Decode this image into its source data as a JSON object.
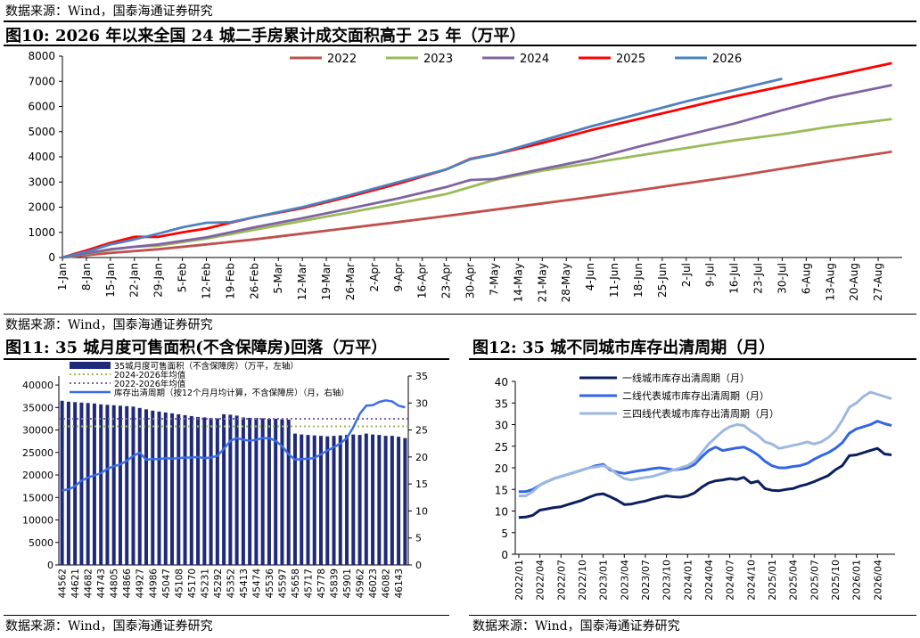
{
  "top_source": "数据来源：Wind，国泰海通证券研究",
  "fig10": {
    "title": "图10:  2026 年以来全国 24 城二手房累计成交面积高于 25 年（万平）",
    "source": "数据来源：Wind，国泰海通证券研究"
  },
  "fig11": {
    "title": "图11:  35 城月度可售面积(不含保障房)回落（万平）",
    "source": "数据来源：Wind，国泰海通证券研究"
  },
  "fig12": {
    "title": "图12:  35 城不同城市库存出清周期（月）",
    "source": "数据来源：Wind，国泰海通证券研究"
  },
  "colors": {
    "s2022": "#C0504D",
    "s2023": "#9BBB59",
    "s2024": "#8064A2",
    "s2025": "#FF0000",
    "s2026": "#4F81BD",
    "bar": "#1F2A7A",
    "avg2426": "#9BBB59",
    "avg2226": "#8064A2",
    "cycle": "#3B6EE6",
    "tier1": "#0B1F5C",
    "tier2": "#3366E6",
    "tier34": "#9DB8DE"
  },
  "chart_data": [
    {
      "type": "line",
      "title": "",
      "ylim": [
        0,
        8000
      ],
      "yticks": [
        0,
        1000,
        2000,
        3000,
        4000,
        5000,
        6000,
        7000,
        8000
      ],
      "x_range_days": [
        0,
        245
      ],
      "xticks": [
        "1-Jan",
        "8-Jan",
        "15-Jan",
        "22-Jan",
        "29-Jan",
        "5-Feb",
        "12-Feb",
        "19-Feb",
        "26-Feb",
        "5-Mar",
        "12-Mar",
        "19-Mar",
        "26-Mar",
        "2-Apr",
        "9-Apr",
        "16-Apr",
        "23-Apr",
        "30-Apr",
        "7-May",
        "14-May",
        "21-May",
        "28-May",
        "4-Jun",
        "11-Jun",
        "18-Jun",
        "25-Jun",
        "2-Jul",
        "9-Jul",
        "16-Jul",
        "23-Jul",
        "30-Jul",
        "6-Aug",
        "13-Aug",
        "20-Aug",
        "27-Aug"
      ],
      "legend_position": "top",
      "series": [
        {
          "name": "2022",
          "x": [
            "1-Jan",
            "15-Jan",
            "29-Jan",
            "12-Feb",
            "26-Feb",
            "12-Mar",
            "26-Mar",
            "9-Apr",
            "23-Apr",
            "7-May",
            "21-May",
            "4-Jun",
            "18-Jun",
            "2-Jul",
            "16-Jul",
            "30-Jul",
            "13-Aug",
            "31-Aug"
          ],
          "y": [
            0,
            180,
            330,
            520,
            720,
            950,
            1180,
            1410,
            1650,
            1900,
            2150,
            2400,
            2670,
            2950,
            3220,
            3530,
            3830,
            4200
          ]
        },
        {
          "name": "2023",
          "x": [
            "1-Jan",
            "15-Jan",
            "22-Jan",
            "29-Jan",
            "12-Feb",
            "26-Feb",
            "12-Mar",
            "26-Mar",
            "9-Apr",
            "23-Apr",
            "7-May",
            "21-May",
            "4-Jun",
            "18-Jun",
            "2-Jul",
            "16-Jul",
            "30-Jul",
            "13-Aug",
            "31-Aug"
          ],
          "y": [
            0,
            300,
            430,
            470,
            750,
            1100,
            1450,
            1800,
            2150,
            2520,
            3080,
            3450,
            3750,
            4050,
            4350,
            4650,
            4900,
            5200,
            5500
          ]
        },
        {
          "name": "2024",
          "x": [
            "1-Jan",
            "15-Jan",
            "29-Jan",
            "12-Feb",
            "26-Feb",
            "12-Mar",
            "26-Mar",
            "9-Apr",
            "23-Apr",
            "30-Apr",
            "7-May",
            "21-May",
            "4-Jun",
            "18-Jun",
            "2-Jul",
            "16-Jul",
            "30-Jul",
            "13-Aug",
            "31-Aug"
          ],
          "y": [
            0,
            330,
            520,
            800,
            1200,
            1560,
            1950,
            2350,
            2800,
            3080,
            3120,
            3520,
            3900,
            4400,
            4860,
            5320,
            5850,
            6350,
            6850
          ]
        },
        {
          "name": "2025",
          "x": [
            "1-Jan",
            "8-Jan",
            "15-Jan",
            "22-Jan",
            "29-Jan",
            "5-Feb",
            "12-Feb",
            "19-Feb",
            "26-Feb",
            "12-Mar",
            "26-Mar",
            "9-Apr",
            "23-Apr",
            "30-Apr",
            "7-May",
            "21-May",
            "4-Jun",
            "18-Jun",
            "2-Jul",
            "16-Jul",
            "30-Jul",
            "13-Aug",
            "31-Aug"
          ],
          "y": [
            0,
            280,
            580,
            820,
            820,
            1000,
            1150,
            1380,
            1600,
            1960,
            2430,
            2930,
            3500,
            3920,
            4100,
            4550,
            5050,
            5500,
            5950,
            6400,
            6800,
            7200,
            7720
          ]
        },
        {
          "name": "2026",
          "x": [
            "1-Jan",
            "8-Jan",
            "15-Jan",
            "22-Jan",
            "29-Jan",
            "5-Feb",
            "12-Feb",
            "19-Feb",
            "26-Feb",
            "12-Mar",
            "26-Mar",
            "9-Apr",
            "23-Apr",
            "30-Apr",
            "7-May",
            "21-May",
            "4-Jun",
            "18-Jun",
            "2-Jul",
            "16-Jul",
            "30-Jul"
          ],
          "y": [
            0,
            220,
            520,
            720,
            950,
            1200,
            1380,
            1400,
            1600,
            2000,
            2480,
            3000,
            3500,
            3900,
            4100,
            4650,
            5200,
            5700,
            6200,
            6650,
            7100
          ]
        }
      ]
    },
    {
      "type": "bar",
      "title": "",
      "legend": [
        "35城月度可售面积（不含保障房）（万平，左轴）",
        "2024-2026年均值",
        "2022-2026年均值",
        "库存出清周期（按12个月月均计算，不含保障房）（月，右轴）"
      ],
      "categories": [
        "44562",
        "44593",
        "44621",
        "44652",
        "44682",
        "44713",
        "44743",
        "44774",
        "44805",
        "44835",
        "44866",
        "44896",
        "44927",
        "44958",
        "44986",
        "45017",
        "45047",
        "45078",
        "45108",
        "45139",
        "45170",
        "45200",
        "45231",
        "45261",
        "45292",
        "45323",
        "45352",
        "45383",
        "45413",
        "45444",
        "45474",
        "45505",
        "45536",
        "45566",
        "45597",
        "45627",
        "45658",
        "45689",
        "45717",
        "45748",
        "45778",
        "45809",
        "45839",
        "45870",
        "45901",
        "45931",
        "45962",
        "45992",
        "46023",
        "46054",
        "46082",
        "46113",
        "46143",
        "46174"
      ],
      "xtick_labels": [
        "44562",
        "44621",
        "44682",
        "44743",
        "44805",
        "44866",
        "44927",
        "44986",
        "45047",
        "45108",
        "45170",
        "45231",
        "45292",
        "45352",
        "45413",
        "45474",
        "45536",
        "45597",
        "45658",
        "45717",
        "45778",
        "45839",
        "45901",
        "45962",
        "46023",
        "46082",
        "46143"
      ],
      "left_ylim": [
        0,
        42000
      ],
      "left_yticks": [
        0,
        5000,
        10000,
        15000,
        20000,
        25000,
        30000,
        35000,
        40000
      ],
      "right_ylim": [
        0,
        35
      ],
      "right_yticks": [
        0,
        5,
        10,
        15,
        20,
        25,
        30,
        35
      ],
      "bars": [
        36500,
        36300,
        36200,
        36100,
        36000,
        35900,
        35700,
        35600,
        35500,
        35400,
        35300,
        35200,
        34900,
        34600,
        34300,
        34100,
        33900,
        33700,
        33500,
        33300,
        33100,
        32900,
        32800,
        32700,
        32600,
        33500,
        33400,
        33200,
        32800,
        32700,
        32700,
        32600,
        32500,
        32500,
        32400,
        32300,
        29200,
        29000,
        28900,
        28800,
        28700,
        28600,
        28700,
        28800,
        28900,
        29000,
        28900,
        29200,
        29000,
        28900,
        28700,
        28700,
        28500,
        28200
      ],
      "avg_2024_2026": 30800,
      "avg_2022_2026": 32500,
      "cycle_months": [
        13.8,
        14.0,
        14.6,
        15.6,
        16.2,
        16.6,
        17.0,
        17.8,
        18.3,
        18.6,
        19.3,
        20.2,
        20.8,
        19.5,
        19.6,
        19.6,
        19.8,
        19.7,
        19.8,
        19.9,
        19.9,
        20.0,
        19.8,
        19.9,
        20.2,
        21.5,
        23.0,
        23.5,
        23.2,
        23.0,
        23.2,
        23.5,
        23.5,
        23.0,
        22.0,
        20.5,
        19.5,
        19.6,
        19.7,
        19.8,
        20.5,
        21.2,
        21.8,
        22.5,
        23.5,
        25.5,
        28.0,
        29.5,
        29.6,
        30.2,
        30.5,
        30.3,
        29.5,
        29.2
      ]
    },
    {
      "type": "line",
      "title": "",
      "ylim": [
        0,
        40
      ],
      "yticks": [
        0,
        5,
        10,
        15,
        20,
        25,
        30,
        35,
        40
      ],
      "categories": [
        "2022/01",
        "2022/02",
        "2022/03",
        "2022/04",
        "2022/05",
        "2022/06",
        "2022/07",
        "2022/08",
        "2022/09",
        "2022/10",
        "2022/11",
        "2022/12",
        "2023/01",
        "2023/02",
        "2023/03",
        "2023/04",
        "2023/05",
        "2023/06",
        "2023/07",
        "2023/08",
        "2023/09",
        "2023/10",
        "2023/11",
        "2023/12",
        "2024/01",
        "2024/02",
        "2024/03",
        "2024/04",
        "2024/05",
        "2024/06",
        "2024/07",
        "2024/08",
        "2024/09",
        "2024/10",
        "2024/11",
        "2024/12",
        "2025/01",
        "2025/02",
        "2025/03",
        "2025/04",
        "2025/05",
        "2025/06",
        "2025/07",
        "2025/08",
        "2025/09",
        "2025/10",
        "2025/11",
        "2025/12",
        "2026/01",
        "2026/02",
        "2026/03",
        "2026/04",
        "2026/05",
        "2026/06"
      ],
      "xtick_labels": [
        "2022/01",
        "2022/04",
        "2022/07",
        "2022/10",
        "2023/01",
        "2023/04",
        "2023/07",
        "2023/10",
        "2024/01",
        "2024/04",
        "2024/07",
        "2024/10",
        "2025/01",
        "2025/04",
        "2025/07",
        "2025/10",
        "2026/01",
        "2026/04"
      ],
      "legend_position": "top-left",
      "series": [
        {
          "name": "一线城市库存出清周期（月）",
          "values": [
            8.5,
            8.6,
            9.0,
            10.2,
            10.5,
            10.8,
            11.0,
            11.5,
            12.0,
            12.5,
            13.2,
            13.8,
            14.0,
            13.3,
            12.5,
            11.5,
            11.6,
            12.0,
            12.3,
            12.8,
            13.2,
            13.5,
            13.3,
            13.2,
            13.5,
            14.2,
            15.5,
            16.5,
            17.0,
            17.2,
            17.5,
            17.3,
            17.8,
            16.5,
            16.9,
            15.2,
            14.8,
            14.7,
            15.0,
            15.2,
            15.8,
            16.2,
            16.8,
            17.5,
            18.2,
            19.5,
            20.5,
            22.8,
            23.0,
            23.5,
            24.0,
            24.5,
            23.2,
            23.0
          ]
        },
        {
          "name": "二线代表城市库存出清周期（月）",
          "values": [
            14.5,
            14.5,
            15.0,
            16.0,
            16.8,
            17.5,
            18.0,
            18.5,
            19.0,
            19.5,
            20.0,
            20.5,
            20.8,
            19.5,
            19.0,
            18.7,
            19.0,
            19.3,
            19.5,
            19.8,
            20.0,
            19.8,
            19.5,
            19.7,
            20.0,
            20.8,
            22.5,
            24.0,
            24.8,
            24.0,
            24.3,
            24.6,
            24.8,
            24.0,
            23.0,
            21.5,
            20.5,
            20.0,
            20.0,
            20.3,
            20.5,
            21.0,
            22.0,
            22.8,
            23.5,
            24.5,
            25.8,
            28.0,
            29.0,
            29.5,
            30.0,
            30.8,
            30.2,
            29.8
          ]
        },
        {
          "name": "三四线代表城市库存出清周期（月）",
          "values": [
            13.5,
            13.5,
            14.5,
            16.0,
            16.8,
            17.5,
            18.0,
            18.5,
            19.0,
            19.5,
            20.0,
            20.2,
            20.5,
            19.8,
            18.5,
            17.5,
            17.2,
            17.5,
            17.8,
            18.0,
            18.5,
            19.0,
            19.5,
            20.0,
            20.5,
            21.5,
            23.5,
            25.5,
            27.0,
            28.5,
            29.5,
            30.0,
            29.8,
            28.5,
            27.5,
            26.0,
            25.5,
            24.5,
            24.8,
            25.2,
            25.5,
            26.0,
            25.5,
            26.0,
            27.0,
            28.5,
            31.0,
            34.0,
            35.0,
            36.5,
            37.5,
            37.0,
            36.5,
            36.0
          ]
        }
      ]
    }
  ]
}
